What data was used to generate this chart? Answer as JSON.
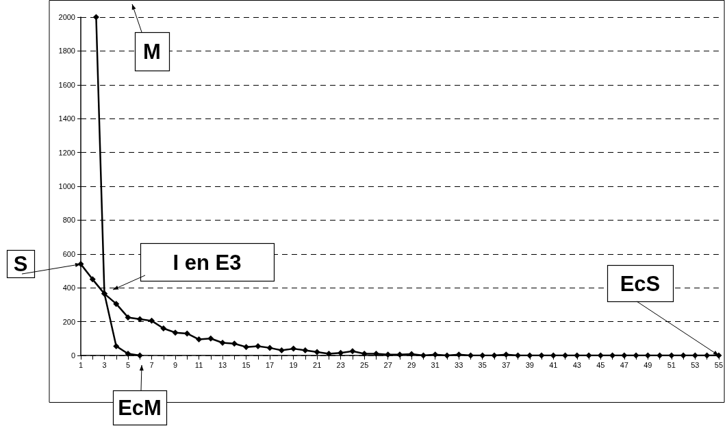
{
  "chart_data": {
    "type": "line",
    "x": [
      1,
      2,
      3,
      4,
      5,
      6,
      7,
      8,
      9,
      10,
      11,
      12,
      13,
      14,
      15,
      16,
      17,
      18,
      19,
      20,
      21,
      22,
      23,
      24,
      25,
      26,
      27,
      28,
      29,
      30,
      31,
      32,
      33,
      34,
      35,
      36,
      37,
      38,
      39,
      40,
      41,
      42,
      43,
      44,
      45,
      46,
      47,
      48,
      49,
      50,
      51,
      52,
      53,
      54,
      55
    ],
    "series": [
      {
        "color": "#000000",
        "values": [
          540,
          450,
          365,
          305,
          225,
          215,
          205,
          160,
          135,
          130,
          95,
          100,
          75,
          70,
          50,
          55,
          45,
          30,
          40,
          30,
          20,
          10,
          15,
          25,
          10,
          10,
          5,
          5,
          8,
          0,
          5,
          0,
          5,
          0,
          0,
          0,
          5,
          0,
          0,
          0,
          0,
          0,
          0,
          0,
          0,
          0,
          0,
          0,
          0,
          0,
          0,
          0,
          0,
          0,
          0
        ]
      },
      {
        "color": "#000000",
        "x": [
          2.3,
          3,
          4,
          5,
          6
        ],
        "values": [
          2000,
          365,
          55,
          10,
          0
        ]
      }
    ],
    "xlim": [
      1,
      55
    ],
    "xticks": [
      1,
      {
        "value": 2,
        "label": null
      },
      3,
      {
        "value": 4,
        "label": null
      },
      5,
      {
        "value": 6,
        "label": null
      },
      7,
      {
        "value": 8,
        "label": null
      },
      9,
      {
        "value": 10,
        "label": null
      },
      11,
      {
        "value": 12,
        "label": null
      },
      13,
      {
        "value": 14,
        "label": null
      },
      15,
      {
        "value": 16,
        "label": null
      },
      17,
      {
        "value": 18,
        "label": null
      },
      19,
      {
        "value": 20,
        "label": null
      },
      21,
      {
        "value": 22,
        "label": null
      },
      23,
      {
        "value": 24,
        "label": null
      },
      25,
      {
        "value": 26,
        "label": null
      },
      27,
      {
        "value": 28,
        "label": null
      },
      29,
      {
        "value": 30,
        "label": null
      },
      31,
      {
        "value": 32,
        "label": null
      },
      33,
      {
        "value": 34,
        "label": null
      },
      35,
      {
        "value": 36,
        "label": null
      },
      37,
      {
        "value": 38,
        "label": null
      },
      39,
      {
        "value": 40,
        "label": null
      },
      41,
      {
        "value": 42,
        "label": null
      },
      43,
      {
        "value": 44,
        "label": null
      },
      45,
      {
        "value": 46,
        "label": null
      },
      47,
      {
        "value": 48,
        "label": null
      },
      49,
      {
        "value": 50,
        "label": null
      },
      51,
      {
        "value": 52,
        "label": null
      },
      53,
      {
        "value": 54,
        "label": null
      },
      55
    ],
    "ylim": [
      0,
      2000
    ],
    "yticks": [
      0,
      200,
      400,
      600,
      800,
      1000,
      1200,
      1400,
      1600,
      1800,
      2000
    ],
    "grid": "y",
    "marker": "diamond",
    "line_style": "solid",
    "annotations": [
      "M",
      {
        "text": "S",
        "x": 1,
        "y": 540
      },
      "I en E3",
      {
        "text": "EcS",
        "x": 55,
        "y": 0
      },
      "EcM"
    ]
  }
}
